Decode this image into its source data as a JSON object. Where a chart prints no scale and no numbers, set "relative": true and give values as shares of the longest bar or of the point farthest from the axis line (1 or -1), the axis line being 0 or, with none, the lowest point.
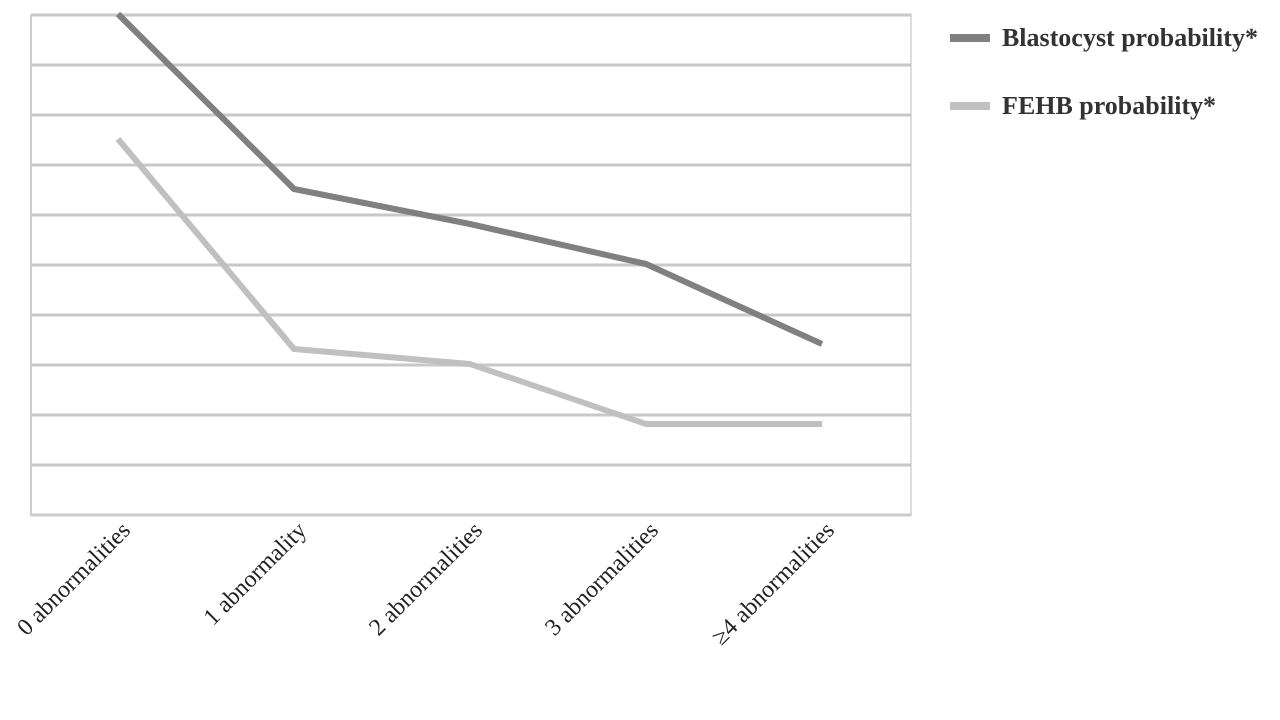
{
  "chart_data": {
    "type": "line",
    "relative": true,
    "grid": "y",
    "legend": "right",
    "tick_labels": "x",
    "categories": [
      "0 abnormalities",
      "1 abnormality",
      "2 abnormalities",
      "3 abnormalities",
      "≥4 abnormalities"
    ],
    "series": [
      {
        "name": "Blastocyst probability*",
        "color": "#808080",
        "values": [
          1,
          0.65,
          0.58,
          0.5,
          0.34
        ]
      },
      {
        "name": "FEHB probability*",
        "color": "#c0c0c0",
        "values": [
          0.75,
          0.33,
          0.3,
          0.18,
          0.18
        ]
      }
    ]
  }
}
